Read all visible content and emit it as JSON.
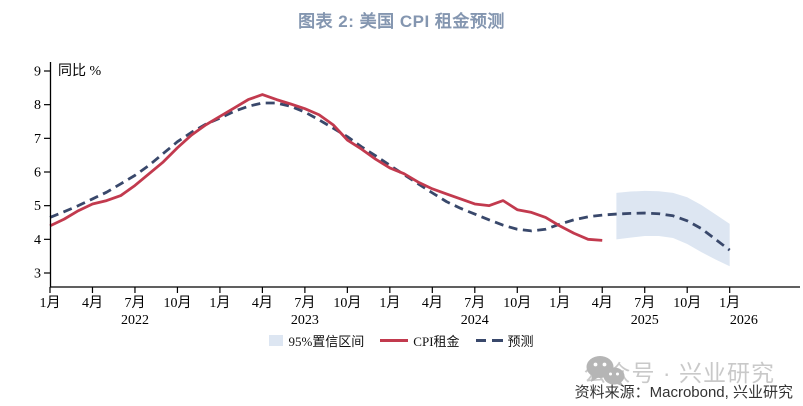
{
  "title": "图表 2: 美国 CPI 租金预测",
  "colors": {
    "title": "#8496b0",
    "cpi_line": "#c23a4e",
    "forecast_line": "#39486b",
    "band": "#dde6f2",
    "axis": "#000000",
    "watermark": "#c9c9c9",
    "watermark_icon": "#b5b5b5",
    "source_text": "#333333"
  },
  "legend": {
    "items": [
      {
        "label": "95%置信区间",
        "marker": "band-swatch"
      },
      {
        "label": "CPI租金",
        "marker": "solid-red-line"
      },
      {
        "label": "预测",
        "marker": "navy-dashes"
      }
    ]
  },
  "footer": {
    "watermark": "公众号 · 兴业研究",
    "watermark_icon": "wechat-icon",
    "source": "资料来源：Macrobond, 兴业研究"
  },
  "chart_data": {
    "type": "line",
    "title": "图表 2: 美国 CPI 租金预测",
    "ylabel": "同比 %",
    "xlabel": "",
    "ylim": [
      3,
      9
    ],
    "grid": false,
    "legend_position": "bottom-center",
    "yticks": [
      9,
      8,
      7,
      6,
      5,
      4,
      3
    ],
    "x_start": "2022-01",
    "x_end": "2026-01",
    "xticks": [
      {
        "month": 0,
        "label": "1月"
      },
      {
        "month": 3,
        "label": "4月"
      },
      {
        "month": 6,
        "label": "7月"
      },
      {
        "month": 9,
        "label": "10月"
      },
      {
        "month": 12,
        "label": "1月"
      },
      {
        "month": 15,
        "label": "4月"
      },
      {
        "month": 18,
        "label": "7月"
      },
      {
        "month": 21,
        "label": "10月"
      },
      {
        "month": 24,
        "label": "1月"
      },
      {
        "month": 27,
        "label": "4月"
      },
      {
        "month": 30,
        "label": "7月"
      },
      {
        "month": 33,
        "label": "10月"
      },
      {
        "month": 36,
        "label": "1月"
      },
      {
        "month": 39,
        "label": "4月"
      },
      {
        "month": 42,
        "label": "7月"
      },
      {
        "month": 45,
        "label": "10月"
      },
      {
        "month": 48,
        "label": "1月"
      }
    ],
    "year_labels": [
      {
        "label": "2022",
        "month": 6
      },
      {
        "label": "2023",
        "month": 18
      },
      {
        "label": "2024",
        "month": 30
      },
      {
        "label": "2025",
        "month": 42
      },
      {
        "label": "2026",
        "month": 49
      }
    ],
    "series": [
      {
        "name": "CPI租金",
        "style": "solid",
        "color": "#c23a4e",
        "start_month": 0,
        "monthly_values": [
          4.4,
          4.6,
          4.85,
          5.05,
          5.15,
          5.3,
          5.6,
          5.95,
          6.3,
          6.72,
          7.1,
          7.4,
          7.65,
          7.9,
          8.15,
          8.3,
          8.15,
          8.02,
          7.88,
          7.7,
          7.4,
          6.95,
          6.68,
          6.38,
          6.12,
          5.95,
          5.7,
          5.5,
          5.35,
          5.2,
          5.05,
          5.0,
          5.15,
          4.88,
          4.8,
          4.65,
          4.4,
          4.18,
          4.0,
          3.97
        ]
      },
      {
        "name": "预测",
        "style": "dashed",
        "color": "#39486b",
        "start_month": 0,
        "monthly_values": [
          4.65,
          4.82,
          5.0,
          5.2,
          5.4,
          5.65,
          5.9,
          6.2,
          6.55,
          6.9,
          7.18,
          7.42,
          7.6,
          7.8,
          7.95,
          8.05,
          8.05,
          7.95,
          7.78,
          7.55,
          7.3,
          7.05,
          6.75,
          6.48,
          6.2,
          5.92,
          5.65,
          5.38,
          5.12,
          4.92,
          4.75,
          4.58,
          4.42,
          4.3,
          4.25,
          4.3,
          4.45,
          4.58,
          4.67,
          4.72,
          4.75,
          4.77,
          4.78,
          4.76,
          4.7,
          4.55,
          4.32,
          4.0,
          3.68
        ]
      }
    ],
    "confidence_band": {
      "name": "95%置信区间",
      "color": "#dde6f2",
      "start_month": 40,
      "upper": [
        5.38,
        5.42,
        5.44,
        5.43,
        5.38,
        5.25,
        5.02,
        4.74,
        4.46
      ],
      "lower": [
        4.0,
        4.05,
        4.1,
        4.1,
        4.04,
        3.86,
        3.62,
        3.4,
        3.2
      ]
    }
  }
}
